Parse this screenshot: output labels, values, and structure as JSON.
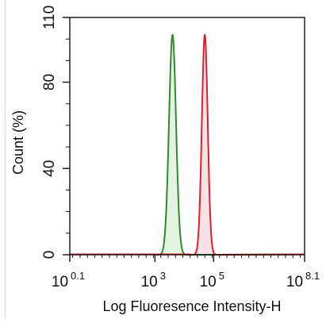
{
  "chart_data": {
    "type": "area",
    "xlabel": "Log Fluoresence Intensity-H",
    "ylabel": "Count  (%)",
    "x_scale": "log10",
    "xlim": [
      1.2589,
      125892541
    ],
    "ylim": [
      0,
      110
    ],
    "x_ticks": [
      {
        "base": "10",
        "exp": "0.1",
        "value": 1.2589
      },
      {
        "base": "10",
        "exp": "3",
        "value": 1000
      },
      {
        "base": "10",
        "exp": "5",
        "value": 100000
      },
      {
        "base": "10",
        "exp": "8.1",
        "value": 125892541
      }
    ],
    "y_ticks": [
      "0",
      "40",
      "80",
      "110"
    ],
    "series": [
      {
        "color": "#2e8b2e",
        "fill": "#dff0dc",
        "peak_x": 3981,
        "peak_y": 102,
        "width_decades": 0.12
      },
      {
        "color": "#dd1f2f",
        "fill": "#f6dde2",
        "peak_x": 50119,
        "peak_y": 102,
        "width_decades": 0.1
      }
    ],
    "grid": false,
    "legend": "none"
  }
}
